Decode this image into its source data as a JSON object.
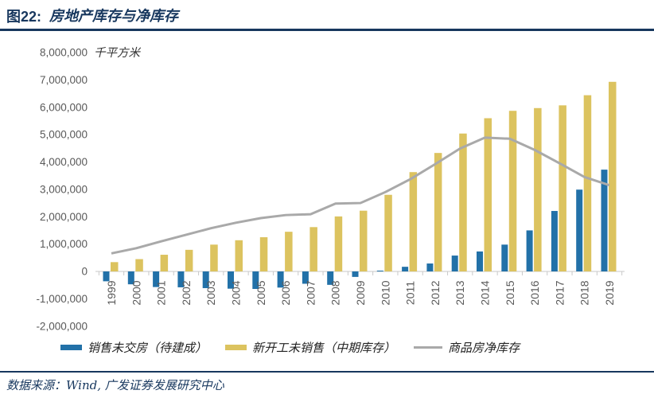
{
  "header": {
    "figure_label": "图22:",
    "title": "房地产库存与净库存"
  },
  "chart_data": {
    "type": "bar",
    "subtype": "grouped-bars-with-line",
    "title": "房地产库存与净库存",
    "unit_label": "千平方米",
    "xlabel": "",
    "ylabel": "千平方米",
    "ylim": [
      -2000000,
      8000000
    ],
    "ytick_step": 1000000,
    "grid": false,
    "legend_position": "bottom",
    "categories": [
      "1999",
      "2000",
      "2001",
      "2002",
      "2003",
      "2004",
      "2005",
      "2006",
      "2007",
      "2008",
      "2009",
      "2010",
      "2011",
      "2012",
      "2013",
      "2014",
      "2015",
      "2016",
      "2017",
      "2018",
      "2019"
    ],
    "series": [
      {
        "name": "销售未交房（待建成）",
        "type": "bar",
        "color": "#2271A8",
        "values": [
          -360000,
          -470000,
          -570000,
          -580000,
          -610000,
          -630000,
          -640000,
          -590000,
          -450000,
          -490000,
          -200000,
          30000,
          170000,
          290000,
          580000,
          730000,
          980000,
          1500000,
          2210000,
          2990000,
          3720000
        ]
      },
      {
        "name": "新开工未销售（中期库存）",
        "type": "bar",
        "color": "#DCC35F",
        "values": [
          340000,
          450000,
          610000,
          790000,
          980000,
          1140000,
          1250000,
          1450000,
          1620000,
          2010000,
          2220000,
          2800000,
          3630000,
          4330000,
          5040000,
          5600000,
          5870000,
          5970000,
          6070000,
          6440000,
          6930000
        ]
      },
      {
        "name": "商品房净库存",
        "type": "line",
        "color": "#A9A9A9",
        "values": [
          660000,
          850000,
          1100000,
          1340000,
          1580000,
          1780000,
          1950000,
          2060000,
          2090000,
          2480000,
          2500000,
          2900000,
          3370000,
          3920000,
          4490000,
          4890000,
          4850000,
          4440000,
          3950000,
          3450000,
          3150000
        ]
      }
    ]
  },
  "footer": {
    "source": "数据来源：Wind, 广发证券发展研究中心"
  },
  "colors": {
    "accent_navy": "#17375E",
    "axis_text": "#595959",
    "axis_line": "#C9C9C9"
  }
}
